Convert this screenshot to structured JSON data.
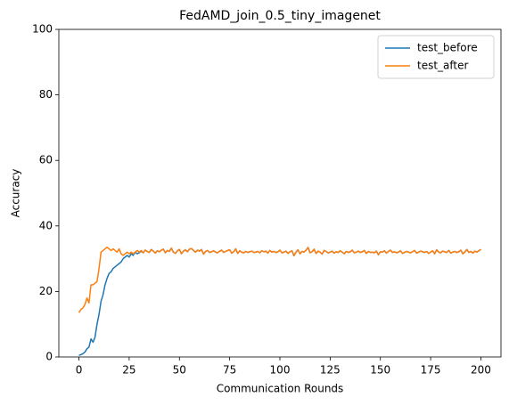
{
  "chart_data": {
    "type": "line",
    "title": "FedAMD_join_0.5_tiny_imagenet",
    "xlabel": "Communication Rounds",
    "ylabel": "Accuracy",
    "xlim": [
      -10,
      210
    ],
    "ylim": [
      0,
      100
    ],
    "xticks": [
      0,
      25,
      50,
      75,
      100,
      125,
      150,
      175,
      200
    ],
    "yticks": [
      0,
      20,
      40,
      60,
      80,
      100
    ],
    "legend": "upper right",
    "grid": false,
    "series": [
      {
        "name": "test_before",
        "color": "#1f77b4",
        "values": [
          0.5,
          0.7,
          1.0,
          1.5,
          2.5,
          3.0,
          5.5,
          4.5,
          6.0,
          10.0,
          13.0,
          17.0,
          19.0,
          22.0,
          24.0,
          25.5,
          26.0,
          27.0,
          27.5,
          28.0,
          28.5,
          29.0,
          30.0,
          30.5,
          31.0,
          30.5,
          31.5,
          31.0,
          32.0,
          31.5,
          31.8,
          32.3,
          31.8,
          32.6,
          32.2,
          31.9,
          32.8,
          32.3,
          31.7,
          32.4,
          32.1,
          32.6,
          32.9,
          31.8,
          32.5,
          32.2,
          33.2,
          32.0,
          31.6,
          32.4,
          32.8,
          31.5,
          32.3,
          32.7,
          32.1,
          32.9,
          33.1,
          32.5,
          32.0,
          32.6,
          32.3,
          32.8,
          31.4,
          32.2,
          32.5,
          31.9,
          32.1,
          32.4,
          32.0,
          31.8,
          32.3,
          32.6,
          31.9,
          32.2,
          32.5,
          32.7,
          31.7,
          32.1,
          33.0,
          31.6,
          32.4,
          32.0,
          31.8,
          32.2,
          31.9,
          32.1,
          32.3,
          31.9,
          32.0,
          32.2,
          31.8,
          32.4,
          32.1,
          32.3,
          31.7,
          32.5,
          32.0,
          32.2,
          31.9,
          32.1,
          32.6,
          31.8,
          32.0,
          32.3,
          31.6,
          32.1,
          32.4,
          30.9,
          32.0,
          32.7,
          31.5,
          32.2,
          32.0,
          32.6,
          33.4,
          31.8,
          32.1,
          32.9,
          31.6,
          32.3,
          32.0,
          31.4,
          32.5,
          32.2,
          31.8,
          32.0,
          32.3,
          31.7,
          32.1,
          31.9,
          32.4,
          32.0,
          31.5,
          32.2,
          31.9,
          32.1,
          32.6,
          31.8,
          32.0,
          32.3,
          31.9,
          32.1,
          32.5,
          31.6,
          32.2,
          31.9,
          32.0,
          31.8,
          32.3,
          31.2,
          32.1,
          32.0,
          32.4,
          31.7,
          32.2,
          32.6,
          31.9,
          32.1,
          31.8,
          32.0,
          32.4,
          31.6,
          31.9,
          32.2,
          32.0,
          31.8,
          32.1,
          32.5,
          31.7,
          32.0,
          32.3,
          32.1,
          31.9,
          32.2,
          31.6,
          32.0,
          32.4,
          31.5,
          32.7,
          32.0,
          31.8,
          32.3,
          32.1,
          31.9,
          32.5,
          31.7,
          32.0,
          32.2,
          31.9,
          32.1,
          32.6,
          31.5,
          32.0,
          32.8,
          31.9,
          32.2,
          31.7,
          32.3,
          32.0,
          32.4,
          32.8
        ]
      },
      {
        "name": "test_after",
        "color": "#ff7f0e",
        "values": [
          13.5,
          14.5,
          15.0,
          16.0,
          18.0,
          16.5,
          22.0,
          22.0,
          22.5,
          23.0,
          27.0,
          32.0,
          32.5,
          33.0,
          33.5,
          33.0,
          32.5,
          33.0,
          32.5,
          32.0,
          33.0,
          31.5,
          31.0,
          31.5,
          32.0,
          31.5,
          32.0,
          31.5,
          32.0,
          32.5,
          32.0,
          32.5,
          31.8,
          32.6,
          32.2,
          31.9,
          32.8,
          32.3,
          31.7,
          32.4,
          32.1,
          32.6,
          32.9,
          31.8,
          32.5,
          32.2,
          33.2,
          32.0,
          31.6,
          32.4,
          32.8,
          31.5,
          32.3,
          32.7,
          32.1,
          32.9,
          33.1,
          32.5,
          32.0,
          32.6,
          32.3,
          32.8,
          31.4,
          32.2,
          32.5,
          31.9,
          32.1,
          32.4,
          32.0,
          31.8,
          32.3,
          32.6,
          31.9,
          32.2,
          32.5,
          32.7,
          31.7,
          32.1,
          33.0,
          31.6,
          32.4,
          32.0,
          31.8,
          32.2,
          31.9,
          32.1,
          32.3,
          31.9,
          32.0,
          32.2,
          31.8,
          32.4,
          32.1,
          32.3,
          31.7,
          32.5,
          32.0,
          32.2,
          31.9,
          32.1,
          32.6,
          31.8,
          32.0,
          32.3,
          31.6,
          32.1,
          32.4,
          30.9,
          32.0,
          32.7,
          31.5,
          32.2,
          32.0,
          32.6,
          33.4,
          31.8,
          32.1,
          32.9,
          31.6,
          32.3,
          32.0,
          31.4,
          32.5,
          32.2,
          31.8,
          32.0,
          32.3,
          31.7,
          32.1,
          31.9,
          32.4,
          32.0,
          31.5,
          32.2,
          31.9,
          32.1,
          32.6,
          31.8,
          32.0,
          32.3,
          31.9,
          32.1,
          32.5,
          31.6,
          32.2,
          31.9,
          32.0,
          31.8,
          32.3,
          31.2,
          32.1,
          32.0,
          32.4,
          31.7,
          32.2,
          32.6,
          31.9,
          32.1,
          31.8,
          32.0,
          32.4,
          31.6,
          31.9,
          32.2,
          32.0,
          31.8,
          32.1,
          32.5,
          31.7,
          32.0,
          32.3,
          32.1,
          31.9,
          32.2,
          31.6,
          32.0,
          32.4,
          31.5,
          32.7,
          32.0,
          31.8,
          32.3,
          32.1,
          31.9,
          32.5,
          31.7,
          32.0,
          32.2,
          31.9,
          32.1,
          32.6,
          31.5,
          32.0,
          32.8,
          31.9,
          32.2,
          31.7,
          32.3,
          32.0,
          32.4,
          32.8
        ]
      }
    ]
  }
}
